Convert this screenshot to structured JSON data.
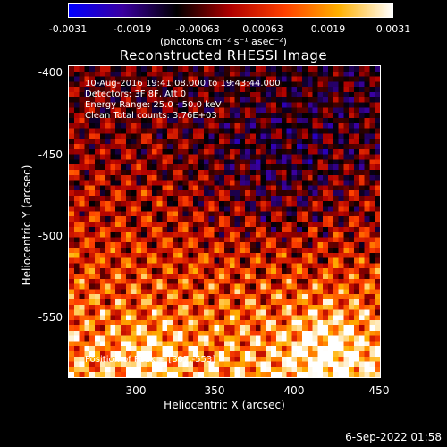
{
  "colorbar": {
    "ticks": [
      "-0.0031",
      "-0.0019",
      "-0.00063",
      "0.00063",
      "0.0019",
      "0.0031"
    ],
    "unit": "(photons cm⁻² s⁻¹ asec⁻²)",
    "colors": [
      "#0000ff",
      "#3a00a0",
      "#000000",
      "#b00000",
      "#ff4000",
      "#ffb000",
      "#ffffff"
    ]
  },
  "chart_data": {
    "type": "heatmap",
    "title": "Reconstructed RHESSI Image",
    "xlabel": "Heliocentric X (arcsec)",
    "ylabel": "Heliocentric Y (arcsec)",
    "xlim": [
      258,
      450
    ],
    "ylim": [
      -590,
      -395
    ],
    "xticks": [
      "300",
      "350",
      "400",
      "450"
    ],
    "yticks": [
      "-400",
      "-450",
      "-500",
      "-550"
    ],
    "annotations": [
      "10-Aug-2016 19:41:08.000 to 19:43:44.000",
      "Detectors: 3F 8F, Att 0",
      "Energy Range: 25.0 - 50.0 keV",
      "Clean    Total counts: 3.76E+03"
    ],
    "peak_label": "Position of Peak = [307,-553]",
    "peak": [
      307,
      -553
    ],
    "value_range": [
      -0.0031,
      0.0031
    ]
  },
  "footer": {
    "date": "6-Sep-2022 01:58"
  }
}
